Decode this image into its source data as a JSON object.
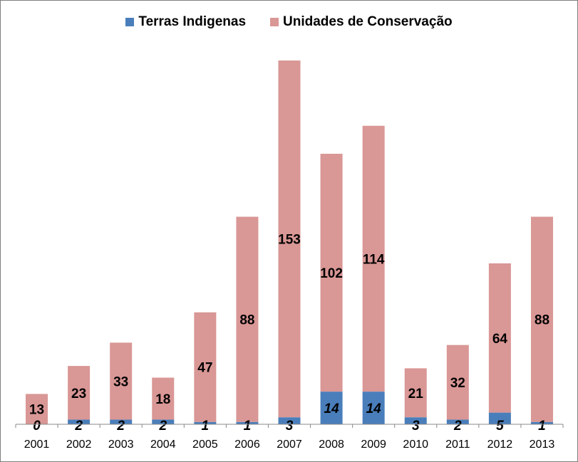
{
  "chart_data": {
    "type": "bar",
    "stacked": true,
    "categories": [
      "2001",
      "2002",
      "2003",
      "2004",
      "2005",
      "2006",
      "2007",
      "2008",
      "2009",
      "2010",
      "2011",
      "2012",
      "2013"
    ],
    "series": [
      {
        "name": "Terras Indigenas",
        "color": "#4a7ebb",
        "values": [
          0,
          2,
          2,
          2,
          1,
          1,
          3,
          14,
          14,
          3,
          2,
          5,
          1
        ]
      },
      {
        "name": "Unidades de Conservação",
        "color": "#d99795",
        "values": [
          13,
          23,
          33,
          18,
          47,
          88,
          153,
          102,
          114,
          21,
          32,
          64,
          88
        ]
      }
    ],
    "legend": "top-center",
    "grid": false,
    "ylim": [
      0,
      160
    ]
  }
}
